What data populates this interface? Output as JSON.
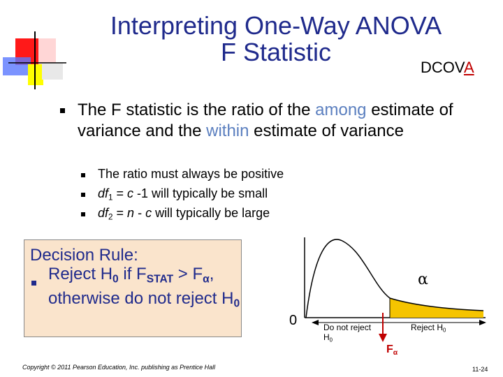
{
  "header": {
    "title_line1": "Interpreting One-Way ANOVA",
    "title_line2": "F Statistic",
    "tag_prefix": "DCOV",
    "tag_highlight": "A"
  },
  "main_bullet": {
    "segments": [
      {
        "text": "The F statistic is the ratio of the "
      },
      {
        "text": "among",
        "color": "#5b7fbf"
      },
      {
        "text": " estimate of variance and the "
      },
      {
        "text": "within",
        "color": "#5b7fbf"
      },
      {
        "text": " estimate of variance"
      }
    ]
  },
  "sub_bullets": [
    {
      "segments": [
        {
          "text": "The ratio must always be positive"
        }
      ]
    },
    {
      "segments": [
        {
          "text": "df",
          "style": "italic"
        },
        {
          "text": "1",
          "style": "sub"
        },
        {
          "text": " = "
        },
        {
          "text": "c",
          "style": "italic"
        },
        {
          "text": " -1 will typically be small"
        }
      ]
    },
    {
      "segments": [
        {
          "text": "df",
          "style": "italic"
        },
        {
          "text": "2",
          "style": "sub"
        },
        {
          "text": " = "
        },
        {
          "text": "n",
          "style": "italic"
        },
        {
          "text": " - "
        },
        {
          "text": "c",
          "style": "italic"
        },
        {
          "text": "  will typically be large"
        }
      ]
    }
  ],
  "decision_box": {
    "heading": "Decision Rule:",
    "segments": [
      {
        "text": "Reject H"
      },
      {
        "text": "0",
        "style": "subbold"
      },
      {
        "text": " if F"
      },
      {
        "text": "STAT",
        "style": "subbold"
      },
      {
        "text": " > F"
      },
      {
        "text": "α",
        "style": "subbold"
      },
      {
        "text": ", otherwise do not reject H"
      },
      {
        "text": "0",
        "style": "subbold"
      }
    ]
  },
  "diagram": {
    "alpha": "α",
    "origin": "0",
    "do_not_reject": [
      {
        "text": "Do not reject H"
      },
      {
        "text": "0",
        "style": "sub"
      }
    ],
    "reject": [
      {
        "text": "Reject H"
      },
      {
        "text": "0",
        "style": "sub"
      }
    ],
    "critical": [
      {
        "text": "F"
      },
      {
        "text": "α",
        "style": "sub"
      }
    ]
  },
  "footer": {
    "copyright": "Copyright © 2011 Pearson Education, Inc. publishing as Prentice Hall",
    "page": "11-24"
  }
}
